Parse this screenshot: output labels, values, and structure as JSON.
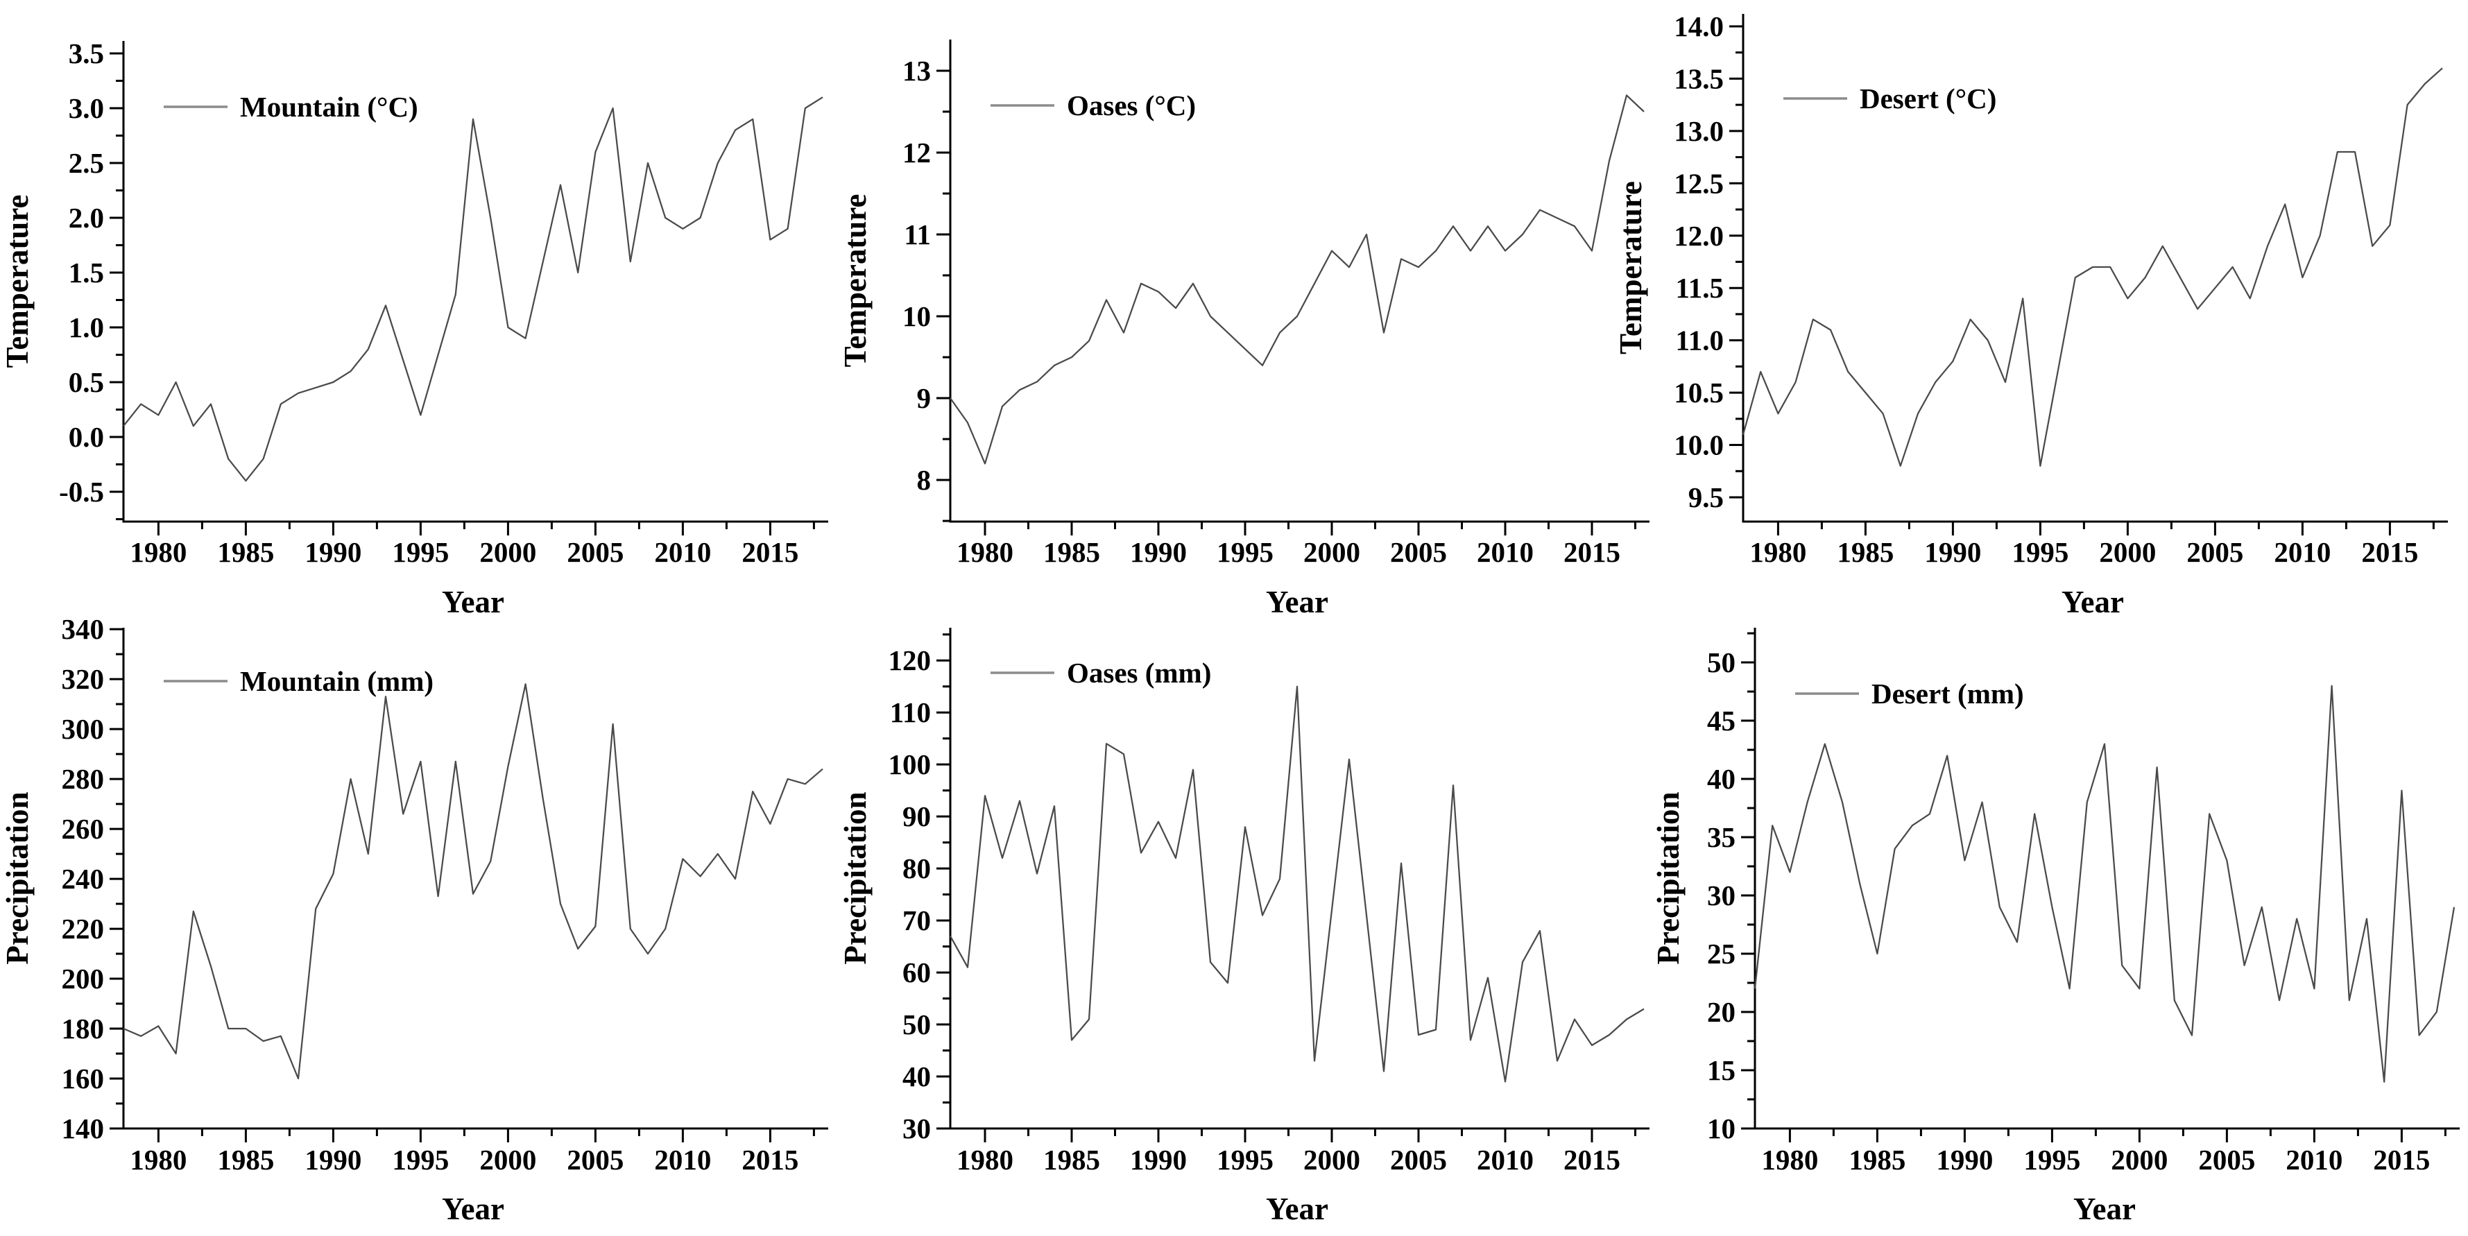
{
  "figure": {
    "description": "Six-panel climate figure: annual mean temperature (top row) and annual precipitation (bottom row) for Mountain, Oases and Desert zones, 1978-2018",
    "background": "#ffffff",
    "text_color": "#000000",
    "line_color": "#4a4a4a",
    "legend_swatch_color": "#8c8c8c",
    "axis_color": "#000000"
  },
  "chart_data": {
    "type": "line",
    "x_label": "Year",
    "x_years": [
      1978,
      1979,
      1980,
      1981,
      1982,
      1983,
      1984,
      1985,
      1986,
      1987,
      1988,
      1989,
      1990,
      1991,
      1992,
      1993,
      1994,
      1995,
      1996,
      1997,
      1998,
      1999,
      2000,
      2001,
      2002,
      2003,
      2004,
      2005,
      2006,
      2007,
      2008,
      2009,
      2010,
      2011,
      2012,
      2013,
      2014,
      2015,
      2016,
      2017,
      2018
    ],
    "x_tick_labels": [
      1980,
      1985,
      1990,
      1995,
      2000,
      2005,
      2010,
      2015
    ],
    "x_minor_ticks_every": 2.5,
    "grid": false,
    "legend_position": "top-left-inside",
    "panels": [
      {
        "id": "mountain-temperature",
        "legend": "Mountain (°C)",
        "ylabel": "Temperature",
        "xlabel": "Year",
        "yticks": {
          "start": -0.5,
          "end": 3.5,
          "step": 0.5,
          "decimals": 1
        },
        "ylim": [
          -0.772,
          3.614
        ],
        "values": [
          0.1,
          0.3,
          0.2,
          0.5,
          0.1,
          0.3,
          -0.2,
          -0.4,
          -0.2,
          0.3,
          0.4,
          0.45,
          0.5,
          0.6,
          0.8,
          1.2,
          0.7,
          0.2,
          0.75,
          1.3,
          2.9,
          2.0,
          1.0,
          0.9,
          1.6,
          2.3,
          1.5,
          2.6,
          3.0,
          1.6,
          2.5,
          2.0,
          1.9,
          2.0,
          2.5,
          2.8,
          2.9,
          1.8,
          1.9,
          3.0,
          3.1
        ]
      },
      {
        "id": "oases-temperature",
        "legend": "Oases (°C)",
        "ylabel": "Temperature",
        "xlabel": "Year",
        "yticks": {
          "start": 8,
          "end": 13,
          "step": 1,
          "decimals": 0
        },
        "ylim": [
          7.492,
          13.381
        ],
        "values": [
          9.0,
          8.7,
          8.2,
          8.9,
          9.1,
          9.2,
          9.4,
          9.5,
          9.7,
          10.2,
          9.8,
          10.4,
          10.3,
          10.1,
          10.4,
          10.0,
          9.8,
          9.6,
          9.4,
          9.8,
          10.0,
          10.4,
          10.8,
          10.6,
          11.0,
          9.8,
          10.7,
          10.6,
          10.8,
          11.1,
          10.8,
          11.1,
          10.8,
          11.0,
          11.3,
          11.2,
          11.1,
          10.8,
          11.9,
          12.7,
          12.5
        ]
      },
      {
        "id": "desert-temperature",
        "legend": "Desert (°C)",
        "ylabel": "Temperature",
        "xlabel": "Year",
        "yticks": {
          "start": 9.5,
          "end": 14.0,
          "step": 0.5,
          "decimals": 1
        },
        "ylim": [
          9.268,
          14.119
        ],
        "values": [
          10.1,
          10.7,
          10.3,
          10.6,
          11.2,
          11.1,
          10.7,
          10.5,
          10.3,
          9.8,
          10.3,
          10.6,
          10.8,
          11.2,
          11.0,
          10.6,
          11.4,
          9.8,
          10.7,
          11.6,
          11.7,
          11.7,
          11.4,
          11.6,
          11.9,
          11.6,
          11.3,
          11.5,
          11.7,
          11.4,
          11.9,
          12.3,
          11.6,
          12.0,
          12.8,
          12.8,
          11.9,
          12.1,
          13.25,
          13.45,
          13.6
        ]
      },
      {
        "id": "mountain-precipitation",
        "legend": "Mountain (mm)",
        "ylabel": "Precipitation",
        "xlabel": "Year",
        "yticks": {
          "start": 140,
          "end": 340,
          "step": 20,
          "decimals": 0
        },
        "ylim": [
          140,
          340.6
        ],
        "values": [
          180,
          177,
          181,
          170,
          227,
          205,
          180,
          180,
          175,
          177,
          160,
          228,
          242,
          280,
          250,
          313,
          266,
          287,
          233,
          287,
          234,
          247,
          285,
          318,
          272,
          230,
          212,
          221,
          302,
          220,
          210,
          220,
          248,
          241,
          250,
          240,
          275,
          262,
          280,
          278,
          284
        ]
      },
      {
        "id": "oases-precipitation",
        "legend": "Oases (mm)",
        "ylabel": "Precipitation",
        "xlabel": "Year",
        "yticks": {
          "start": 30,
          "end": 120,
          "step": 10,
          "decimals": 0
        },
        "ylim": [
          30,
          126.3
        ],
        "values": [
          67,
          61,
          94,
          82,
          93,
          79,
          92,
          47,
          51,
          104,
          102,
          83,
          89,
          82,
          99,
          62,
          58,
          88,
          71,
          78,
          115,
          43,
          72,
          101,
          71,
          41,
          81,
          48,
          49,
          96,
          47,
          59,
          39,
          62,
          68,
          43,
          51,
          46,
          48,
          51,
          53
        ]
      },
      {
        "id": "desert-precipitation",
        "legend": "Desert (mm)",
        "ylabel": "Precipitation",
        "xlabel": "Year",
        "yticks": {
          "start": 10,
          "end": 50,
          "step": 5,
          "decimals": 0
        },
        "ylim": [
          10,
          52.98
        ],
        "values": [
          22,
          36,
          32,
          38,
          43,
          38,
          31,
          25,
          34,
          36,
          37,
          42,
          33,
          38,
          29,
          26,
          37,
          29,
          22,
          38,
          43,
          24,
          22,
          41,
          21,
          18,
          37,
          33,
          24,
          29,
          21,
          28,
          22,
          48,
          21,
          28,
          14,
          39,
          18,
          20,
          29
        ]
      }
    ]
  }
}
